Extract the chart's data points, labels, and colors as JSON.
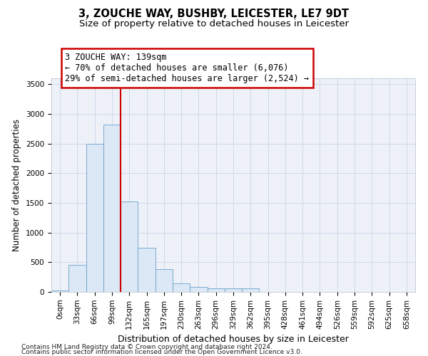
{
  "title": "3, ZOUCHE WAY, BUSHBY, LEICESTER, LE7 9DT",
  "subtitle": "Size of property relative to detached houses in Leicester",
  "xlabel": "Distribution of detached houses by size in Leicester",
  "ylabel": "Number of detached properties",
  "bin_labels": [
    "0sqm",
    "33sqm",
    "66sqm",
    "99sqm",
    "132sqm",
    "165sqm",
    "197sqm",
    "230sqm",
    "263sqm",
    "296sqm",
    "329sqm",
    "362sqm",
    "395sqm",
    "428sqm",
    "461sqm",
    "494sqm",
    "526sqm",
    "559sqm",
    "592sqm",
    "625sqm",
    "658sqm"
  ],
  "bar_heights": [
    30,
    460,
    2500,
    2820,
    1520,
    740,
    390,
    140,
    80,
    55,
    55,
    55,
    0,
    0,
    0,
    0,
    0,
    0,
    0,
    0,
    0
  ],
  "bar_color": "#dce8f5",
  "bar_edgecolor": "#6aa0cc",
  "vline_color": "#cc0000",
  "vline_x": 3.5,
  "annotation_line1": "3 ZOUCHE WAY: 139sqm",
  "annotation_line2": "← 70% of detached houses are smaller (6,076)",
  "annotation_line3": "29% of semi-detached houses are larger (2,524) →",
  "annotation_box_color": "#ffffff",
  "annotation_box_edgecolor": "#cc0000",
  "ylim": [
    0,
    3600
  ],
  "yticks": [
    0,
    500,
    1000,
    1500,
    2000,
    2500,
    3000,
    3500
  ],
  "grid_color": "#d0d8ea",
  "background_color": "#eef2f8",
  "footer_line1": "Contains HM Land Registry data © Crown copyright and database right 2024.",
  "footer_line2": "Contains public sector information licensed under the Open Government Licence v3.0.",
  "title_fontsize": 10.5,
  "subtitle_fontsize": 9.5,
  "xlabel_fontsize": 9,
  "ylabel_fontsize": 8.5,
  "tick_fontsize": 7.5,
  "footer_fontsize": 6.5,
  "annotation_fontsize": 8.5
}
